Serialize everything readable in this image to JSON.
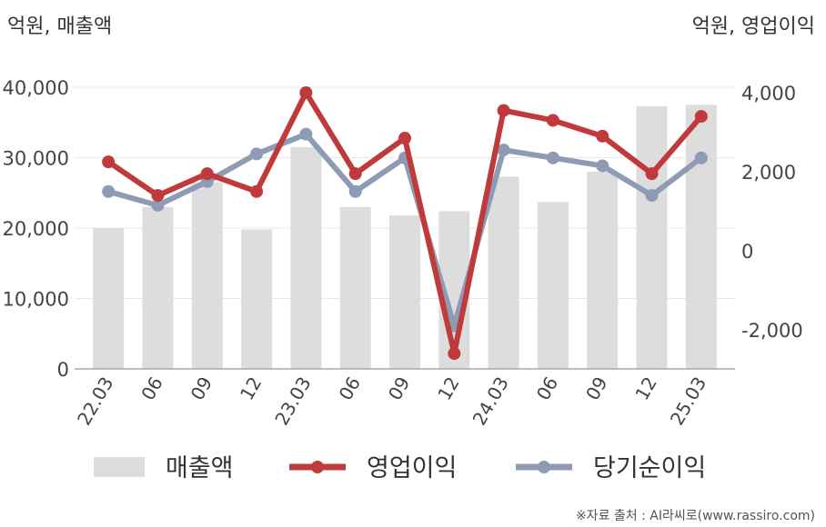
{
  "chart_data": {
    "type": "bar+line",
    "left_unit": "억원, 매출액",
    "right_unit": "억원, 영업이익",
    "categories": [
      "22.03",
      "06",
      "09",
      "12",
      "23.03",
      "06",
      "09",
      "12",
      "24.03",
      "06",
      "09",
      "12",
      "25.03"
    ],
    "left_axis": {
      "min": 0,
      "max": 40000,
      "ticks": [
        0,
        10000,
        20000,
        30000,
        40000
      ],
      "tick_labels": [
        "0",
        "10,000",
        "20,000",
        "30,000",
        "40,000"
      ]
    },
    "right_axis": {
      "min": -3000,
      "max": 4000,
      "ticks": [
        -2000,
        0,
        2000,
        4000
      ],
      "tick_labels": [
        "-2,000",
        "0",
        "2,000",
        "4,000"
      ]
    },
    "grid": true,
    "legend_position": "bottom",
    "series": [
      {
        "name": "매출액",
        "type": "bar",
        "axis": "left",
        "color": "#dddddd",
        "values": [
          20000,
          23000,
          26500,
          19800,
          31500,
          23000,
          21800,
          22400,
          27300,
          23700,
          28000,
          37300,
          37500
        ]
      },
      {
        "name": "영업이익",
        "type": "line",
        "axis": "right",
        "color": "#c0393b",
        "values": [
          2250,
          1400,
          1950,
          1500,
          4000,
          1950,
          2850,
          -2600,
          3550,
          3300,
          2900,
          1950,
          3400
        ]
      },
      {
        "name": "당기순이익",
        "type": "line",
        "axis": "right",
        "color": "#8e9bb4",
        "values": [
          1500,
          1150,
          1750,
          2450,
          2950,
          1500,
          2350,
          -1900,
          2550,
          2350,
          2150,
          1400,
          2350
        ]
      }
    ]
  },
  "source": "※자료 출처 : AI라씨로(www.rassiro.com)"
}
